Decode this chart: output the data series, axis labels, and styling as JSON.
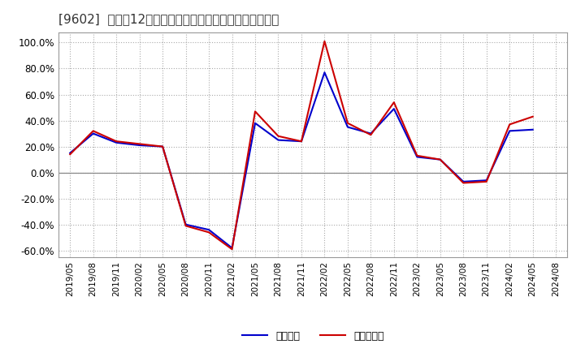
{
  "title": "[9602]  利益だ12か月移動合計の対前年同期増減率の推移",
  "x_labels": [
    "2019/05",
    "2019/08",
    "2019/11",
    "2020/02",
    "2020/05",
    "2020/08",
    "2020/11",
    "2021/02",
    "2021/05",
    "2021/08",
    "2021/11",
    "2022/02",
    "2022/05",
    "2022/08",
    "2022/11",
    "2023/02",
    "2023/05",
    "2023/08",
    "2023/11",
    "2024/02",
    "2024/05",
    "2024/08"
  ],
  "keijo_rieki": [
    0.15,
    0.3,
    0.23,
    0.21,
    0.2,
    -0.4,
    -0.44,
    -0.58,
    0.38,
    0.25,
    0.24,
    0.77,
    0.35,
    0.3,
    0.49,
    0.12,
    0.1,
    -0.07,
    -0.06,
    0.32,
    0.33,
    null
  ],
  "toki_jun_rieki": [
    0.14,
    0.32,
    0.24,
    0.22,
    0.2,
    -0.41,
    -0.46,
    -0.59,
    0.47,
    0.28,
    0.24,
    1.01,
    0.38,
    0.29,
    0.54,
    0.13,
    0.1,
    -0.08,
    -0.07,
    0.37,
    0.43,
    null
  ],
  "keijo_color": "#0000cc",
  "toki_color": "#cc0000",
  "ylim": [
    -0.65,
    1.08
  ],
  "yticks": [
    -0.6,
    -0.4,
    -0.2,
    0.0,
    0.2,
    0.4,
    0.6,
    0.8,
    1.0
  ],
  "legend_labels": [
    "経常利益",
    "当期純利益"
  ],
  "bg_color": "#ffffff",
  "plot_bg_color": "#ffffff",
  "grid_color": "#aaaaaa",
  "line_width": 1.5,
  "title_fontsize": 11
}
